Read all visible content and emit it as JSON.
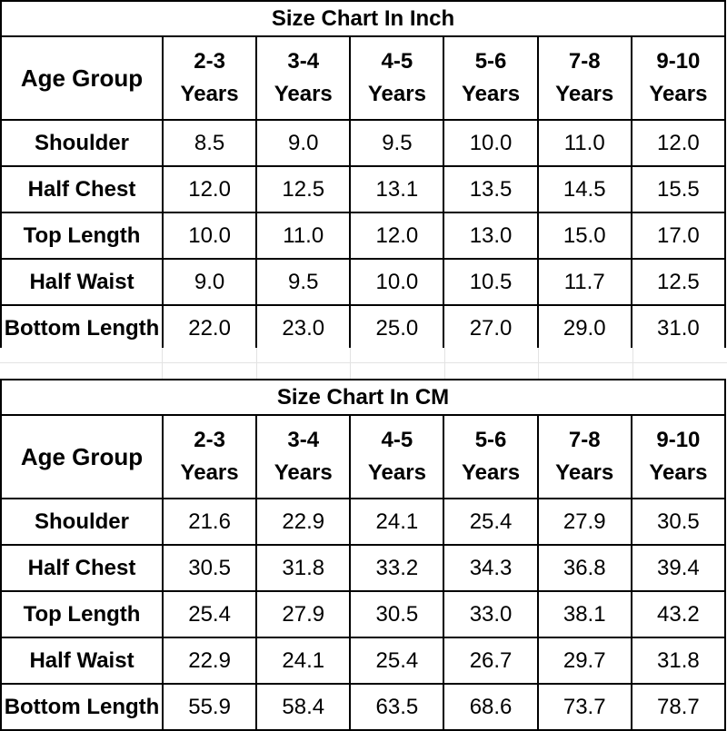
{
  "inch": {
    "title": "Size Chart In Inch",
    "header_label": "Age Group",
    "ages": [
      [
        "2-3",
        "Years"
      ],
      [
        "3-4",
        "Years"
      ],
      [
        "4-5",
        "Years"
      ],
      [
        "5-6",
        "Years"
      ],
      [
        "7-8",
        "Years"
      ],
      [
        "9-10",
        "Years"
      ]
    ],
    "rows": [
      {
        "label": "Shoulder",
        "values": [
          "8.5",
          "9.0",
          "9.5",
          "10.0",
          "11.0",
          "12.0"
        ]
      },
      {
        "label": "Half Chest",
        "values": [
          "12.0",
          "12.5",
          "13.1",
          "13.5",
          "14.5",
          "15.5"
        ]
      },
      {
        "label": "Top Length",
        "values": [
          "10.0",
          "11.0",
          "12.0",
          "13.0",
          "15.0",
          "17.0"
        ]
      },
      {
        "label": "Half Waist",
        "values": [
          "9.0",
          "9.5",
          "10.0",
          "10.5",
          "11.7",
          "12.5"
        ]
      },
      {
        "label": "Bottom Length",
        "values": [
          "22.0",
          "23.0",
          "25.0",
          "27.0",
          "29.0",
          "31.0"
        ]
      }
    ]
  },
  "cm": {
    "title": "Size Chart In CM",
    "header_label": "Age Group",
    "ages": [
      [
        "2-3",
        "Years"
      ],
      [
        "3-4",
        "Years"
      ],
      [
        "4-5",
        "Years"
      ],
      [
        "5-6",
        "Years"
      ],
      [
        "7-8",
        "Years"
      ],
      [
        "9-10",
        "Years"
      ]
    ],
    "rows": [
      {
        "label": "Shoulder",
        "values": [
          "21.6",
          "22.9",
          "24.1",
          "25.4",
          "27.9",
          "30.5"
        ]
      },
      {
        "label": "Half Chest",
        "values": [
          "30.5",
          "31.8",
          "33.2",
          "34.3",
          "36.8",
          "39.4"
        ]
      },
      {
        "label": "Top Length",
        "values": [
          "25.4",
          "27.9",
          "30.5",
          "33.0",
          "38.1",
          "43.2"
        ]
      },
      {
        "label": "Half Waist",
        "values": [
          "22.9",
          "24.1",
          "25.4",
          "26.7",
          "29.7",
          "31.8"
        ]
      },
      {
        "label": "Bottom Length",
        "values": [
          "55.9",
          "58.4",
          "63.5",
          "68.6",
          "73.7",
          "78.7"
        ]
      }
    ]
  }
}
